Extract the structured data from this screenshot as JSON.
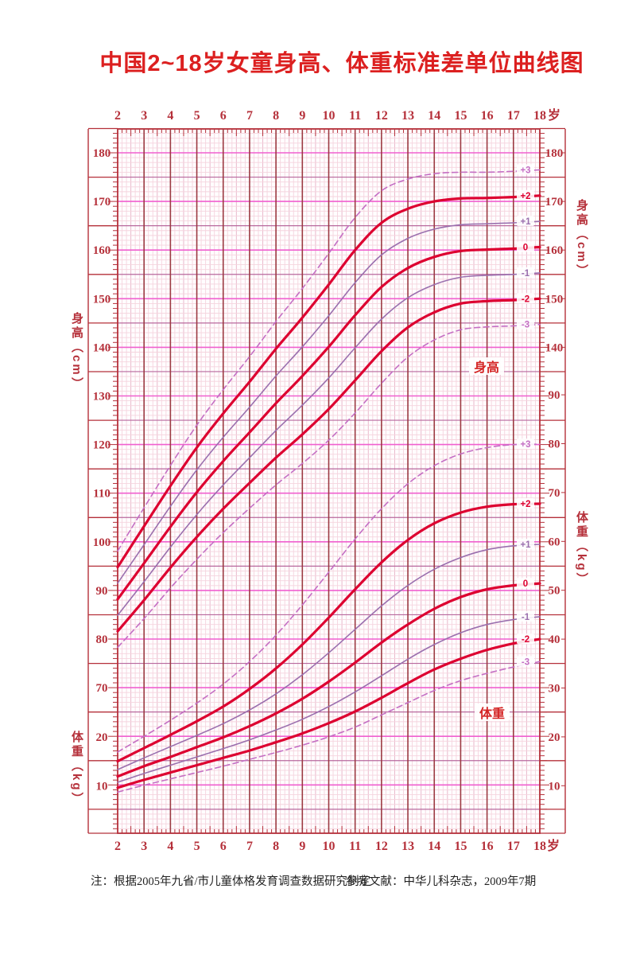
{
  "title": "中国2~18岁女童身高、体重标准差单位曲线图",
  "footnote": {
    "note": "注：根据2005年九省/市儿童体格发育调查数据研究制定",
    "reference": "参考文献：中华儿科杂志，2009年7期"
  },
  "axis_titles": {
    "height": "身高（cm）",
    "weight": "体重（kg）"
  },
  "plot_labels": {
    "height": "身高",
    "weight": "体重"
  },
  "axis": {
    "age_unit": "岁",
    "ages": [
      2,
      3,
      4,
      5,
      6,
      7,
      8,
      9,
      10,
      11,
      12,
      13,
      14,
      15,
      16,
      17,
      18
    ],
    "left_height_ticks": [
      180,
      170,
      160,
      150,
      140,
      130,
      120,
      110,
      100,
      90,
      80,
      70
    ],
    "left_weight_ticks": [
      20,
      10
    ],
    "right_height_ticks": [
      180,
      170,
      160,
      150,
      140
    ],
    "right_weight_ticks": [
      90,
      80,
      70,
      60,
      50,
      40,
      30,
      20,
      10
    ]
  },
  "colors": {
    "title": "#dc2020",
    "axis_text": "#b5303a",
    "frame": "#b5303a",
    "year_line": "#9c3a42",
    "grid_fine": "#f5d4de",
    "grid_half_year": "#e9b9cc",
    "grid_5": "#b8699e",
    "grid_10": "#f060d0",
    "curve_main": "#dd0030",
    "curve_sd1": "#9a6fae",
    "curve_sd3": "#c46fc4",
    "inplot_label": "#d42525",
    "footnote": "#222222"
  },
  "chart_data": {
    "type": "line",
    "title": "中国2~18岁女童身高、体重标准差单位曲线图",
    "xlabel": "岁",
    "x_ages": [
      2,
      3,
      4,
      5,
      6,
      7,
      8,
      9,
      10,
      11,
      12,
      13,
      14,
      15,
      16,
      17,
      18
    ],
    "height_axis": {
      "unit": "cm",
      "tick_step": 10,
      "shown_range": [
        70,
        180
      ]
    },
    "weight_axis": {
      "unit": "kg",
      "tick_step": 10,
      "shown_range": [
        10,
        90
      ]
    },
    "legend_note": "curves are standard-deviation lines labeled +3 to -3",
    "height_series": [
      {
        "sd": "+3",
        "style": "dashed",
        "values": [
          98.1,
          107.0,
          115.7,
          124.0,
          131.3,
          138.1,
          145.3,
          152.1,
          159.3,
          166.7,
          172.2,
          174.6,
          175.7,
          176.0,
          176.0,
          176.2,
          176.5
        ]
      },
      {
        "sd": "+2",
        "style": "main",
        "values": [
          94.8,
          103.2,
          111.5,
          119.4,
          126.4,
          132.9,
          139.7,
          146.1,
          152.9,
          160.0,
          165.6,
          168.5,
          170.0,
          170.6,
          170.7,
          170.9,
          171.2
        ]
      },
      {
        "sd": "+1",
        "style": "thin",
        "values": [
          91.5,
          99.4,
          107.3,
          114.8,
          121.5,
          127.7,
          134.1,
          140.1,
          146.5,
          153.3,
          159.0,
          162.4,
          164.3,
          165.2,
          165.4,
          165.6,
          165.9
        ]
      },
      {
        "sd": "0",
        "style": "main",
        "values": [
          88.2,
          95.6,
          103.1,
          110.2,
          116.6,
          122.5,
          128.5,
          134.1,
          140.1,
          146.6,
          152.4,
          156.3,
          158.6,
          159.8,
          160.1,
          160.3,
          160.6
        ]
      },
      {
        "sd": "-1",
        "style": "thin",
        "values": [
          84.9,
          91.8,
          98.9,
          105.6,
          111.7,
          117.3,
          122.9,
          128.1,
          133.7,
          139.9,
          145.8,
          150.2,
          152.9,
          154.4,
          154.8,
          155.0,
          155.3
        ]
      },
      {
        "sd": "-2",
        "style": "main",
        "values": [
          81.6,
          88.0,
          94.7,
          101.0,
          106.8,
          112.1,
          117.3,
          122.1,
          127.3,
          133.2,
          139.2,
          144.1,
          147.2,
          149.0,
          149.5,
          149.7,
          150.0
        ]
      },
      {
        "sd": "-3",
        "style": "dashed",
        "values": [
          78.3,
          84.2,
          90.5,
          96.4,
          101.9,
          106.9,
          111.7,
          116.1,
          120.9,
          126.5,
          132.6,
          138.0,
          141.5,
          143.6,
          144.2,
          144.4,
          144.7
        ]
      }
    ],
    "weight_series": [
      {
        "sd": "+3",
        "style": "dashed",
        "values": [
          16.9,
          20.1,
          23.4,
          26.9,
          30.8,
          35.4,
          40.8,
          47.0,
          53.7,
          60.5,
          66.7,
          71.8,
          75.5,
          77.9,
          79.2,
          79.8,
          79.9
        ]
      },
      {
        "sd": "+2",
        "style": "main",
        "values": [
          15.0,
          17.7,
          20.4,
          23.2,
          26.2,
          29.8,
          34.0,
          38.9,
          44.4,
          50.2,
          55.7,
          60.3,
          63.7,
          65.9,
          67.1,
          67.6,
          67.7
        ]
      },
      {
        "sd": "+1",
        "style": "thin",
        "values": [
          13.3,
          15.7,
          18.0,
          20.3,
          22.7,
          25.5,
          28.8,
          32.7,
          37.2,
          42.0,
          46.8,
          51.0,
          54.3,
          56.7,
          58.3,
          59.1,
          59.4
        ]
      },
      {
        "sd": "0",
        "style": "main",
        "values": [
          11.9,
          14.0,
          15.9,
          17.9,
          19.9,
          22.2,
          24.8,
          27.8,
          31.3,
          35.2,
          39.3,
          43.0,
          46.2,
          48.6,
          50.2,
          51.0,
          51.4
        ]
      },
      {
        "sd": "-1",
        "style": "thin",
        "values": [
          10.7,
          12.5,
          14.2,
          15.9,
          17.6,
          19.4,
          21.4,
          23.6,
          26.2,
          29.2,
          32.5,
          35.9,
          38.9,
          41.3,
          43.0,
          44.0,
          44.6
        ]
      },
      {
        "sd": "-2",
        "style": "main",
        "values": [
          9.6,
          11.2,
          12.7,
          14.2,
          15.7,
          17.2,
          18.9,
          20.7,
          22.8,
          25.2,
          28.0,
          31.0,
          33.8,
          36.0,
          37.8,
          39.1,
          40.0
        ]
      },
      {
        "sd": "-3",
        "style": "dashed",
        "values": [
          8.7,
          10.1,
          11.4,
          12.7,
          14.0,
          15.4,
          16.8,
          18.3,
          20.0,
          22.0,
          24.5,
          27.0,
          29.5,
          31.5,
          33.0,
          34.3,
          35.4
        ]
      }
    ]
  }
}
